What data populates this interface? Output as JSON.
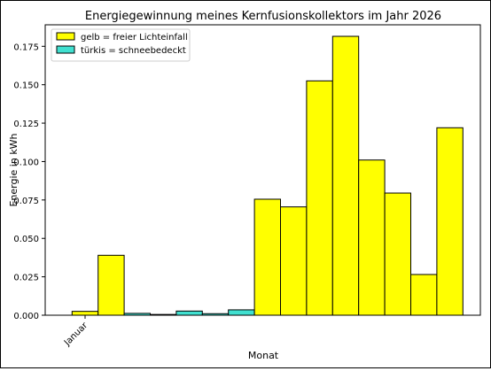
{
  "chart_data": {
    "type": "bar",
    "title": "Energiegewinnung meines Kernfusionskollektors im Jahr 2026",
    "xlabel": "Monat",
    "ylabel": "Energie in kWh",
    "ylim": [
      0,
      0.189
    ],
    "yticks": [
      0.0,
      0.025,
      0.05,
      0.075,
      0.1,
      0.125,
      0.15,
      0.175
    ],
    "ytick_labels": [
      "0.000",
      "0.025",
      "0.050",
      "0.075",
      "0.100",
      "0.125",
      "0.150",
      "0.175"
    ],
    "xtick_labels": [
      "Januar"
    ],
    "grid": false,
    "legend_placement": "top-left",
    "colors": {
      "sun": "#ffff00",
      "snow": "#40e0d0",
      "edge": "#000000"
    },
    "legend": [
      {
        "label": "gelb = freier Lichteinfall",
        "kind": "sun"
      },
      {
        "label": "türkis = schneebedeckt",
        "kind": "snow"
      }
    ],
    "bars": [
      {
        "value": 0.0025,
        "kind": "sun"
      },
      {
        "value": 0.039,
        "kind": "sun"
      },
      {
        "value": 0.0012,
        "kind": "snow"
      },
      {
        "value": 0.0005,
        "kind": "snow"
      },
      {
        "value": 0.0027,
        "kind": "snow"
      },
      {
        "value": 0.001,
        "kind": "snow"
      },
      {
        "value": 0.0035,
        "kind": "snow"
      },
      {
        "value": 0.0755,
        "kind": "sun"
      },
      {
        "value": 0.0705,
        "kind": "sun"
      },
      {
        "value": 0.1525,
        "kind": "sun"
      },
      {
        "value": 0.1815,
        "kind": "sun"
      },
      {
        "value": 0.101,
        "kind": "sun"
      },
      {
        "value": 0.0795,
        "kind": "sun"
      },
      {
        "value": 0.0265,
        "kind": "sun"
      },
      {
        "value": 0.122,
        "kind": "sun"
      }
    ]
  }
}
